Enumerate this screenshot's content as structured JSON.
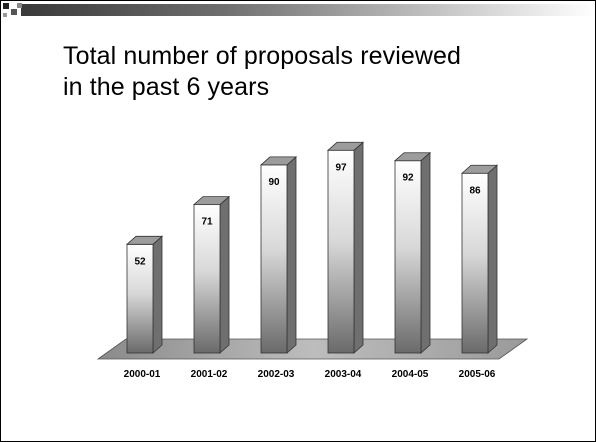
{
  "slide": {
    "title_line1": "Total number of proposals reviewed",
    "title_line2": "in the past 6 years"
  },
  "chart_data": {
    "type": "bar",
    "title": "Total number of proposals reviewed in the past 6 years",
    "categories": [
      "2000-01",
      "2001-02",
      "2002-03",
      "2003-04",
      "2004-05",
      "2005-06"
    ],
    "values": [
      52,
      71,
      90,
      97,
      92,
      86
    ],
    "xlabel": "",
    "ylabel": "",
    "ylim": [
      0,
      100
    ],
    "grid": false,
    "legend": "none",
    "data_labels": true,
    "style": "3d-column"
  }
}
